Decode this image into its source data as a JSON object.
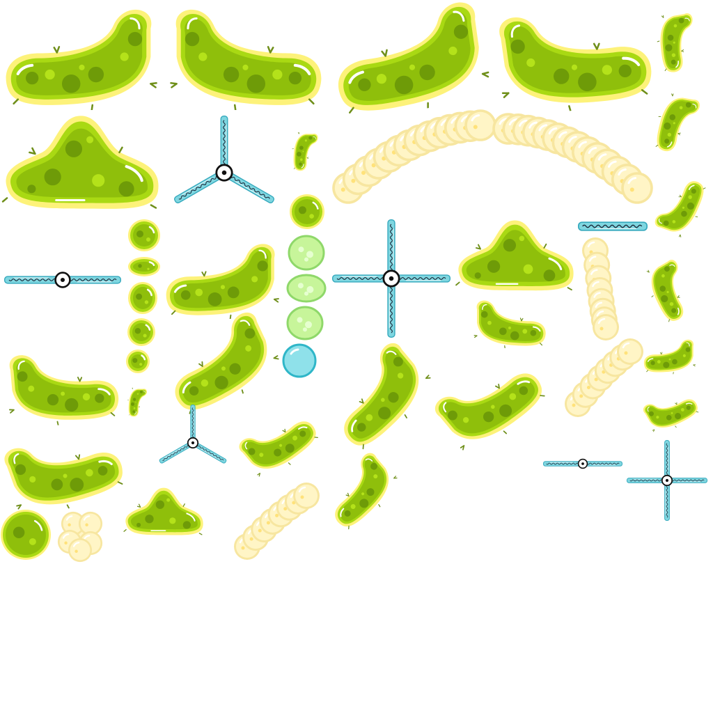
{
  "sheet": {
    "title": "",
    "background": "#ffffff"
  },
  "palette": {
    "bacteria_outer": "#fdf27a",
    "bacteria_rim": "#a9d913",
    "bacteria_body": "#8fbf0b",
    "bacteria_spot_dark": "#6e9b08",
    "bacteria_spot_light": "#b4e21a",
    "hair": "#6f8f1a",
    "highlight": "#ffffff",
    "foam_outer": "#f7e6a0",
    "foam_body": "#fff5c6",
    "foam_dot": "#ffe27a",
    "spinner_tube": "#7fd6e0",
    "spinner_tube_edge": "#35a9bd",
    "spinner_wave": "#1b2a3a",
    "spinner_hub": "#111111",
    "vesicle_green": "#c7f59a",
    "vesicle_green_edge": "#8fd86a",
    "bubble_blue": "#8fe1ea",
    "bubble_blue_edge": "#2fb6c8"
  },
  "sprites": [
    {
      "kind": "bacteria_curve",
      "name": "bacteria-large-curved-a"
    },
    {
      "kind": "bacteria_curve",
      "name": "bacteria-large-curved-b"
    },
    {
      "kind": "bacteria_curve",
      "name": "bacteria-large-curved-c"
    },
    {
      "kind": "bacteria_curve",
      "name": "bacteria-large-curved-d"
    },
    {
      "kind": "bacteria_tri",
      "name": "bacteria-triangular-a"
    },
    {
      "kind": "spinner_tri",
      "name": "spinner-three-arm-a"
    },
    {
      "kind": "foam",
      "name": "foam-chain-a"
    },
    {
      "kind": "foam",
      "name": "foam-chain-b"
    },
    {
      "kind": "spinner_cross",
      "name": "spinner-four-arm-a"
    },
    {
      "kind": "spinner_bar",
      "name": "spinner-bar-a"
    },
    {
      "kind": "vesicle",
      "name": "vesicle-green"
    },
    {
      "kind": "bubble",
      "name": "bubble-blue"
    }
  ]
}
